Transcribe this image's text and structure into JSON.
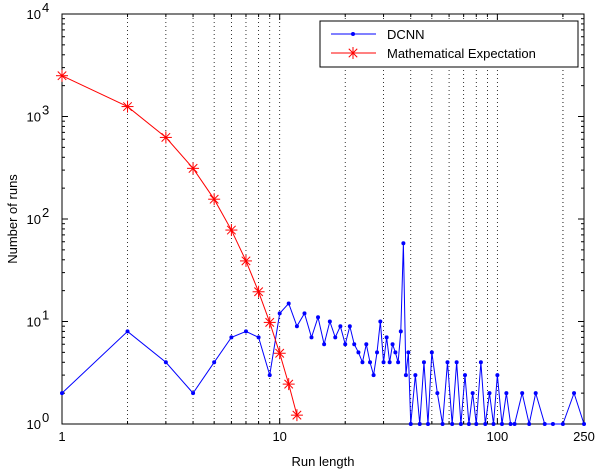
{
  "chart_data": {
    "type": "line",
    "xscale": "log",
    "yscale": "log",
    "xlabel": "Run length",
    "ylabel": "Number of runs",
    "xlim": [
      1,
      250
    ],
    "ylim": [
      1,
      10000
    ],
    "x_tick_labels": [
      {
        "value": 1,
        "label": "1"
      },
      {
        "value": 10,
        "label": "10"
      },
      {
        "value": 100,
        "label": "100"
      },
      {
        "value": 250,
        "label": "250"
      }
    ],
    "y_tick_labels": [
      {
        "value": 1,
        "base": "10",
        "exp": "0"
      },
      {
        "value": 10,
        "base": "10",
        "exp": "1"
      },
      {
        "value": 100,
        "base": "10",
        "exp": "2"
      },
      {
        "value": 1000,
        "base": "10",
        "exp": "3"
      },
      {
        "value": 10000,
        "base": "10",
        "exp": "4"
      }
    ],
    "grid": "vertical-dotted",
    "legend_position": "top-right",
    "series": [
      {
        "name": "DCNN",
        "color": "#0000ff",
        "marker": "dot",
        "points": [
          [
            1,
            2
          ],
          [
            2,
            8
          ],
          [
            3,
            4
          ],
          [
            4,
            2
          ],
          [
            5,
            4
          ],
          [
            6,
            7
          ],
          [
            7,
            8
          ],
          [
            8,
            7
          ],
          [
            9,
            3
          ],
          [
            10,
            12
          ],
          [
            11,
            15
          ],
          [
            12,
            9
          ],
          [
            13,
            12
          ],
          [
            14,
            7
          ],
          [
            15,
            11
          ],
          [
            16,
            6
          ],
          [
            17,
            10
          ],
          [
            18,
            7
          ],
          [
            19,
            9
          ],
          [
            20,
            6
          ],
          [
            21,
            9
          ],
          [
            22,
            6
          ],
          [
            23,
            5
          ],
          [
            24,
            4
          ],
          [
            25,
            6
          ],
          [
            26,
            4
          ],
          [
            27,
            3
          ],
          [
            28,
            5
          ],
          [
            29,
            10
          ],
          [
            30,
            4
          ],
          [
            31,
            7
          ],
          [
            32,
            4
          ],
          [
            33,
            6
          ],
          [
            34,
            5
          ],
          [
            35,
            4
          ],
          [
            36,
            8
          ],
          [
            37,
            58
          ],
          [
            38,
            3
          ],
          [
            39,
            5
          ],
          [
            40,
            1
          ],
          [
            42,
            3
          ],
          [
            44,
            1
          ],
          [
            46,
            4
          ],
          [
            48,
            1
          ],
          [
            50,
            5
          ],
          [
            53,
            2
          ],
          [
            56,
            1
          ],
          [
            59,
            4
          ],
          [
            62,
            1
          ],
          [
            65,
            4
          ],
          [
            68,
            1
          ],
          [
            71,
            3
          ],
          [
            74,
            1
          ],
          [
            77,
            2
          ],
          [
            80,
            1
          ],
          [
            84,
            4
          ],
          [
            88,
            1
          ],
          [
            92,
            2
          ],
          [
            96,
            1
          ],
          [
            100,
            3
          ],
          [
            105,
            1
          ],
          [
            110,
            2
          ],
          [
            115,
            1
          ],
          [
            120,
            1
          ],
          [
            130,
            2
          ],
          [
            140,
            1
          ],
          [
            150,
            2
          ],
          [
            165,
            1
          ],
          [
            180,
            1
          ],
          [
            200,
            1
          ],
          [
            225,
            2
          ],
          [
            250,
            1
          ]
        ]
      },
      {
        "name": "Mathematical Expectation",
        "color": "#ff0000",
        "marker": "asterisk",
        "points": [
          [
            1,
            2500
          ],
          [
            2,
            1250
          ],
          [
            3,
            625
          ],
          [
            4,
            312
          ],
          [
            5,
            156
          ],
          [
            6,
            78
          ],
          [
            7,
            39
          ],
          [
            8,
            19.5
          ],
          [
            9,
            9.8
          ],
          [
            10,
            4.9
          ],
          [
            11,
            2.45
          ],
          [
            12,
            1.22
          ]
        ]
      }
    ]
  }
}
